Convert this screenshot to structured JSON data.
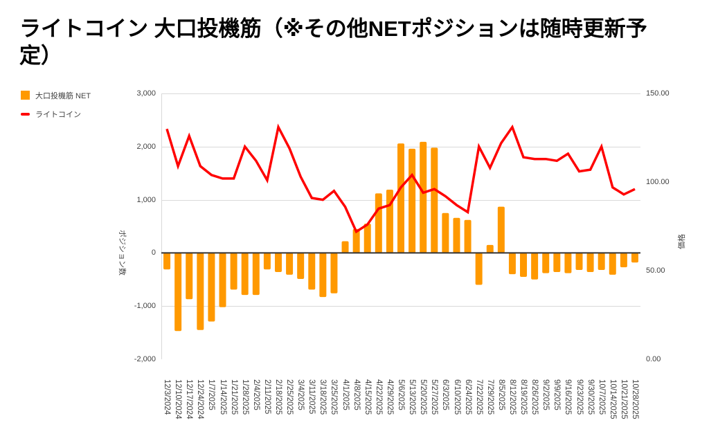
{
  "title": "ライトコイン 大口投機筋（※その他NETポジションは随時更新予定）",
  "legend": {
    "items": [
      {
        "label": "大口投機筋 NET",
        "color": "#ff9900",
        "swatch": "square"
      },
      {
        "label": "ライトコイン",
        "color": "#ff0000",
        "swatch": "line"
      }
    ]
  },
  "chart_data": {
    "type": "combo-bar-line",
    "title": "ライトコイン 大口投機筋（※その他NETポジションは随時更新予定）",
    "grid": true,
    "legend_position": "top-left",
    "categories": [
      "12/3/2024",
      "12/10/2024",
      "12/17/2024",
      "12/24/2024",
      "1/7/2025",
      "1/14/2025",
      "1/21/2025",
      "1/28/2025",
      "2/4/2025",
      "2/11/2025",
      "2/18/2025",
      "2/25/2025",
      "3/4/2025",
      "3/11/2025",
      "3/18/2025",
      "3/25/2025",
      "4/1/2025",
      "4/8/2025",
      "4/15/2025",
      "4/22/2025",
      "4/29/2025",
      "5/6/2025",
      "5/13/2025",
      "5/20/2025",
      "5/27/2025",
      "6/3/2025",
      "6/10/2025",
      "6/24/2025",
      "7/22/2025",
      "7/29/2025",
      "8/5/2025",
      "8/12/2025",
      "8/19/2025",
      "8/26/2025",
      "9/2/2025",
      "9/9/2025",
      "9/16/2025",
      "9/23/2025",
      "9/30/2025",
      "10/7/2025",
      "10/14/2025",
      "10/21/2025",
      "10/28/2025"
    ],
    "series": [
      {
        "name": "大口投機筋 NET",
        "type": "bar",
        "axis": "left",
        "color": "#ff9900",
        "values": [
          -310,
          -1470,
          -870,
          -1450,
          -1290,
          -1020,
          -690,
          -790,
          -790,
          -310,
          -360,
          -410,
          -490,
          -690,
          -830,
          -760,
          220,
          450,
          550,
          1120,
          1190,
          2060,
          1960,
          2090,
          1980,
          750,
          660,
          620,
          -600,
          150,
          870,
          -400,
          -450,
          -500,
          -380,
          -360,
          -380,
          -320,
          -360,
          -320,
          -410,
          -270,
          -180
        ]
      },
      {
        "name": "ライトコイン",
        "type": "line",
        "axis": "right",
        "color": "#ff0000",
        "values": [
          130,
          109,
          126,
          109,
          104,
          102,
          102,
          120,
          112,
          101,
          131,
          119,
          103,
          91,
          90,
          95,
          86,
          72,
          76,
          85,
          87,
          97,
          104,
          94,
          96,
          92,
          87,
          83,
          120,
          108,
          122,
          131,
          114,
          113,
          113,
          112,
          116,
          106,
          107,
          120,
          97,
          93,
          96
        ]
      }
    ],
    "left_axis": {
      "title": "ポジション数",
      "min": -2000,
      "max": 3000,
      "tick_values": [
        3000,
        2000,
        1000,
        0,
        -1000,
        -2000
      ],
      "tick_labels": [
        "3,000",
        "2,000",
        "1,000",
        "0",
        "-1,000",
        "-2,000"
      ]
    },
    "right_axis": {
      "title": "価格",
      "min": 0,
      "max": 150,
      "tick_values": [
        150,
        100,
        50,
        0
      ],
      "tick_labels": [
        "150.00",
        "100.00",
        "50.00",
        "0.00"
      ]
    },
    "colors": {
      "gridline": "#d9d9d9",
      "zero_axis": "#333333",
      "tick_text": "#404040"
    }
  }
}
